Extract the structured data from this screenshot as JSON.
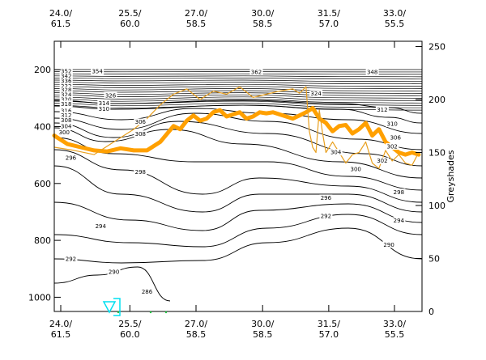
{
  "chart_data": {
    "type": "line",
    "title": "",
    "x_ticks": [
      "24.0/\n61.5",
      "25.5/\n60.0",
      "27.0/\n58.5",
      "30.0/\n58.5",
      "31.5/\n57.0",
      "33.0/\n55.5"
    ],
    "xlim": [
      0,
      5.55
    ],
    "y_left": {
      "ticks": [
        200,
        400,
        600,
        800,
        1000
      ],
      "lim": [
        100,
        1050
      ],
      "inverted": true
    },
    "y_right": {
      "label": "Greyshades",
      "ticks": [
        0,
        50,
        100,
        150,
        200,
        250
      ],
      "lim": [
        0,
        255
      ]
    },
    "isentrope_labels": [
      {
        "x": 0.18,
        "p": 205,
        "t": "352"
      },
      {
        "x": 0.18,
        "p": 223,
        "t": "342"
      },
      {
        "x": 0.18,
        "p": 240,
        "t": "336"
      },
      {
        "x": 0.18,
        "p": 258,
        "t": "332"
      },
      {
        "x": 0.18,
        "p": 270,
        "t": "328"
      },
      {
        "x": 0.18,
        "p": 288,
        "t": "324"
      },
      {
        "x": 0.18,
        "p": 305,
        "t": "320"
      },
      {
        "x": 0.18,
        "p": 320,
        "t": "318"
      },
      {
        "x": 0.18,
        "p": 345,
        "t": "316"
      },
      {
        "x": 0.18,
        "p": 360,
        "t": "312"
      },
      {
        "x": 0.18,
        "p": 378,
        "t": "308"
      },
      {
        "x": 0.18,
        "p": 398,
        "t": "304"
      },
      {
        "x": 0.15,
        "p": 420,
        "t": "300"
      },
      {
        "x": 0.25,
        "p": 510,
        "t": "296"
      },
      {
        "x": 0.65,
        "p": 205,
        "t": "354"
      },
      {
        "x": 0.85,
        "p": 290,
        "t": "326"
      },
      {
        "x": 0.75,
        "p": 318,
        "t": "314"
      },
      {
        "x": 0.75,
        "p": 338,
        "t": "310"
      },
      {
        "x": 1.3,
        "p": 383,
        "t": "306"
      },
      {
        "x": 1.3,
        "p": 425,
        "t": "308"
      },
      {
        "x": 1.3,
        "p": 560,
        "t": "298"
      },
      {
        "x": 3.05,
        "p": 208,
        "t": "362"
      },
      {
        "x": 3.95,
        "p": 283,
        "t": "324"
      },
      {
        "x": 4.8,
        "p": 208,
        "t": "348"
      },
      {
        "x": 4.95,
        "p": 340,
        "t": "312"
      },
      {
        "x": 5.1,
        "p": 390,
        "t": "310"
      },
      {
        "x": 5.15,
        "p": 438,
        "t": "306"
      },
      {
        "x": 5.1,
        "p": 470,
        "t": "302"
      },
      {
        "x": 4.95,
        "p": 520,
        "t": "302"
      },
      {
        "x": 4.55,
        "p": 550,
        "t": "300"
      },
      {
        "x": 4.25,
        "p": 490,
        "t": "304"
      },
      {
        "x": 5.2,
        "p": 630,
        "t": "298"
      },
      {
        "x": 4.1,
        "p": 650,
        "t": "296"
      },
      {
        "x": 4.1,
        "p": 715,
        "t": "292"
      },
      {
        "x": 5.2,
        "p": 730,
        "t": "294"
      },
      {
        "x": 0.7,
        "p": 750,
        "t": "294"
      },
      {
        "x": 5.05,
        "p": 815,
        "t": "290"
      },
      {
        "x": 0.25,
        "p": 865,
        "t": "292"
      },
      {
        "x": 0.9,
        "p": 910,
        "t": "290"
      },
      {
        "x": 1.4,
        "p": 980,
        "t": "286"
      }
    ],
    "series": [
      {
        "type": "thick-line",
        "color": "#ffa000",
        "x": [
          0,
          0.2,
          0.4,
          0.6,
          0.8,
          1.0,
          1.2,
          1.4,
          1.6,
          1.8,
          1.9,
          2.0,
          2.1,
          2.2,
          2.3,
          2.4,
          2.5,
          2.6,
          2.7,
          2.8,
          2.9,
          3.0,
          3.1,
          3.2,
          3.3,
          3.4,
          3.5,
          3.6,
          3.7,
          3.8,
          3.9,
          4.0,
          4.1,
          4.2,
          4.3,
          4.4,
          4.5,
          4.6,
          4.7,
          4.8,
          4.9,
          5.0,
          5.1,
          5.2,
          5.3,
          5.4,
          5.5
        ],
        "greyshade": [
          166,
          158,
          155,
          152,
          151,
          154,
          152,
          152,
          160,
          175,
          172,
          180,
          185,
          180,
          182,
          188,
          190,
          184,
          186,
          188,
          182,
          184,
          188,
          187,
          188,
          186,
          184,
          182,
          185,
          188,
          192,
          182,
          178,
          170,
          175,
          176,
          168,
          172,
          178,
          166,
          172,
          160,
          155,
          150,
          148,
          150,
          148
        ]
      },
      {
        "type": "thin-line",
        "color": "#e8a020",
        "x": [
          0,
          0.3,
          0.6,
          0.9,
          1.2,
          1.4,
          1.6,
          1.8,
          2.0,
          2.2,
          2.4,
          2.6,
          2.8,
          3.0,
          3.2,
          3.4,
          3.6,
          3.7,
          3.8,
          3.85,
          3.9,
          3.95,
          4.0,
          4.05,
          4.1,
          4.2,
          4.3,
          4.4,
          4.5,
          4.6,
          4.7,
          4.8,
          4.9,
          5.0,
          5.1,
          5.2,
          5.3,
          5.4,
          5.5
        ],
        "greyshade": [
          155,
          152,
          148,
          160,
          172,
          182,
          195,
          205,
          210,
          200,
          208,
          205,
          212,
          202,
          205,
          208,
          210,
          206,
          212,
          170,
          155,
          150,
          190,
          168,
          150,
          160,
          150,
          140,
          148,
          150,
          160,
          140,
          135,
          152,
          142,
          148,
          140,
          138,
          150
        ]
      }
    ]
  }
}
